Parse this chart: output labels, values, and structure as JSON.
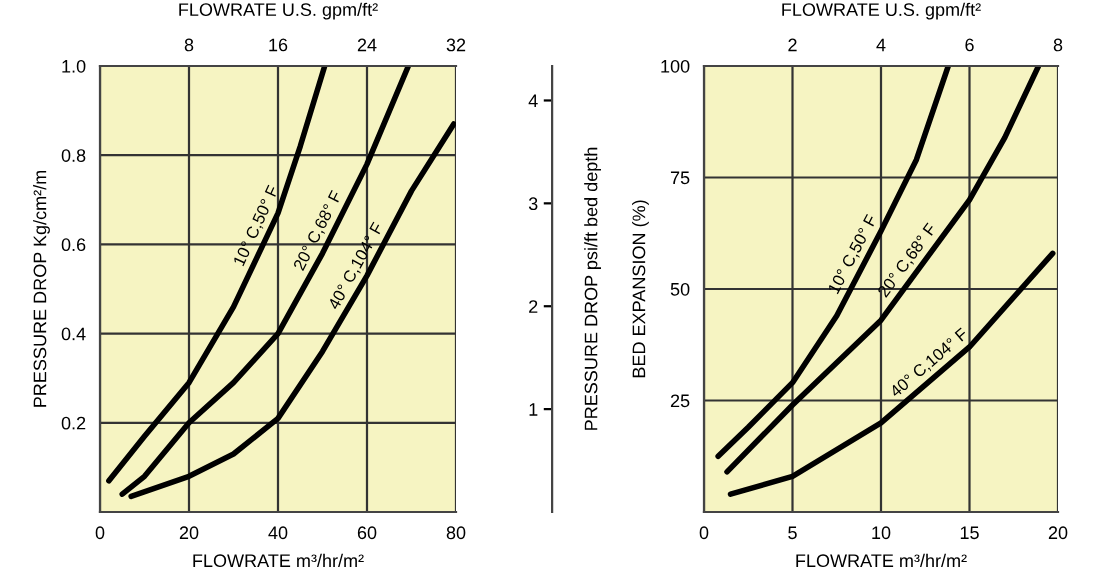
{
  "chart_data": [
    {
      "type": "line",
      "xlabel": "FLOWRATE m³/hr/m²",
      "ylabel": "PRESSURE DROP Kg/cm²/m",
      "x2label": "FLOWRATE U.S. gpm/ft²",
      "y2label": "PRESSURE DROP psi/ft bed depth",
      "xlim": [
        0,
        80
      ],
      "xticks": [
        0,
        20,
        40,
        60,
        80
      ],
      "ylim": [
        0,
        1
      ],
      "yticks": [
        0.2,
        0.4,
        0.6,
        0.8,
        {
          "value": 1,
          "label": "1.0"
        }
      ],
      "x2lim": [
        0,
        32
      ],
      "x2ticks": [
        8,
        16,
        24,
        32
      ],
      "y2lim": [
        0,
        4.335
      ],
      "y2ticks": [
        1,
        2,
        3,
        4
      ],
      "grid": true,
      "marker": "none",
      "line_style": "solid",
      "series": [
        {
          "name": "10° C,50° F",
          "color": "#000000",
          "x": [
            2,
            10,
            20,
            30,
            40,
            45,
            50.5
          ],
          "values": [
            0.07,
            0.17,
            0.29,
            0.46,
            0.67,
            0.82,
            1.0
          ]
        },
        {
          "name": "20° C,68° F",
          "color": "#000000",
          "x": [
            5,
            10,
            20,
            30,
            40,
            50,
            60,
            69.3
          ],
          "values": [
            0.04,
            0.08,
            0.2,
            0.29,
            0.4,
            0.58,
            0.78,
            1.0
          ]
        },
        {
          "name": "40° C,104° F",
          "color": "#000000",
          "x": [
            7,
            20,
            30,
            40,
            50,
            60,
            70,
            79.5
          ],
          "values": [
            0.035,
            0.08,
            0.13,
            0.21,
            0.36,
            0.53,
            0.72,
            0.87
          ]
        }
      ]
    },
    {
      "type": "line",
      "xlabel": "FLOWRATE m³/hr/m²",
      "ylabel": "BED EXPANSION (%)",
      "x2label": "FLOWRATE U.S. gpm/ft²",
      "xlim": [
        0,
        20
      ],
      "xticks": [
        0,
        5,
        10,
        15,
        20
      ],
      "ylim": [
        0,
        100
      ],
      "yticks": [
        25,
        50,
        75,
        100
      ],
      "x2lim": [
        0,
        8
      ],
      "x2ticks": [
        2,
        4,
        6,
        8
      ],
      "grid": true,
      "marker": "none",
      "line_style": "solid",
      "series": [
        {
          "name": "10° C,50° F",
          "color": "#000000",
          "x": [
            0.8,
            2.5,
            5,
            7.5,
            10,
            12,
            13.8
          ],
          "values": [
            12.5,
            19,
            29,
            44,
            63,
            79,
            100
          ]
        },
        {
          "name": "20° C,68° F",
          "color": "#000000",
          "x": [
            1.3,
            5,
            10,
            15,
            17,
            18.9
          ],
          "values": [
            9,
            24,
            43,
            70,
            84,
            100
          ]
        },
        {
          "name": "40° C,104° F",
          "color": "#000000",
          "x": [
            1.5,
            5,
            10,
            15,
            19.7
          ],
          "values": [
            4,
            8,
            20,
            37,
            58
          ]
        }
      ]
    }
  ]
}
